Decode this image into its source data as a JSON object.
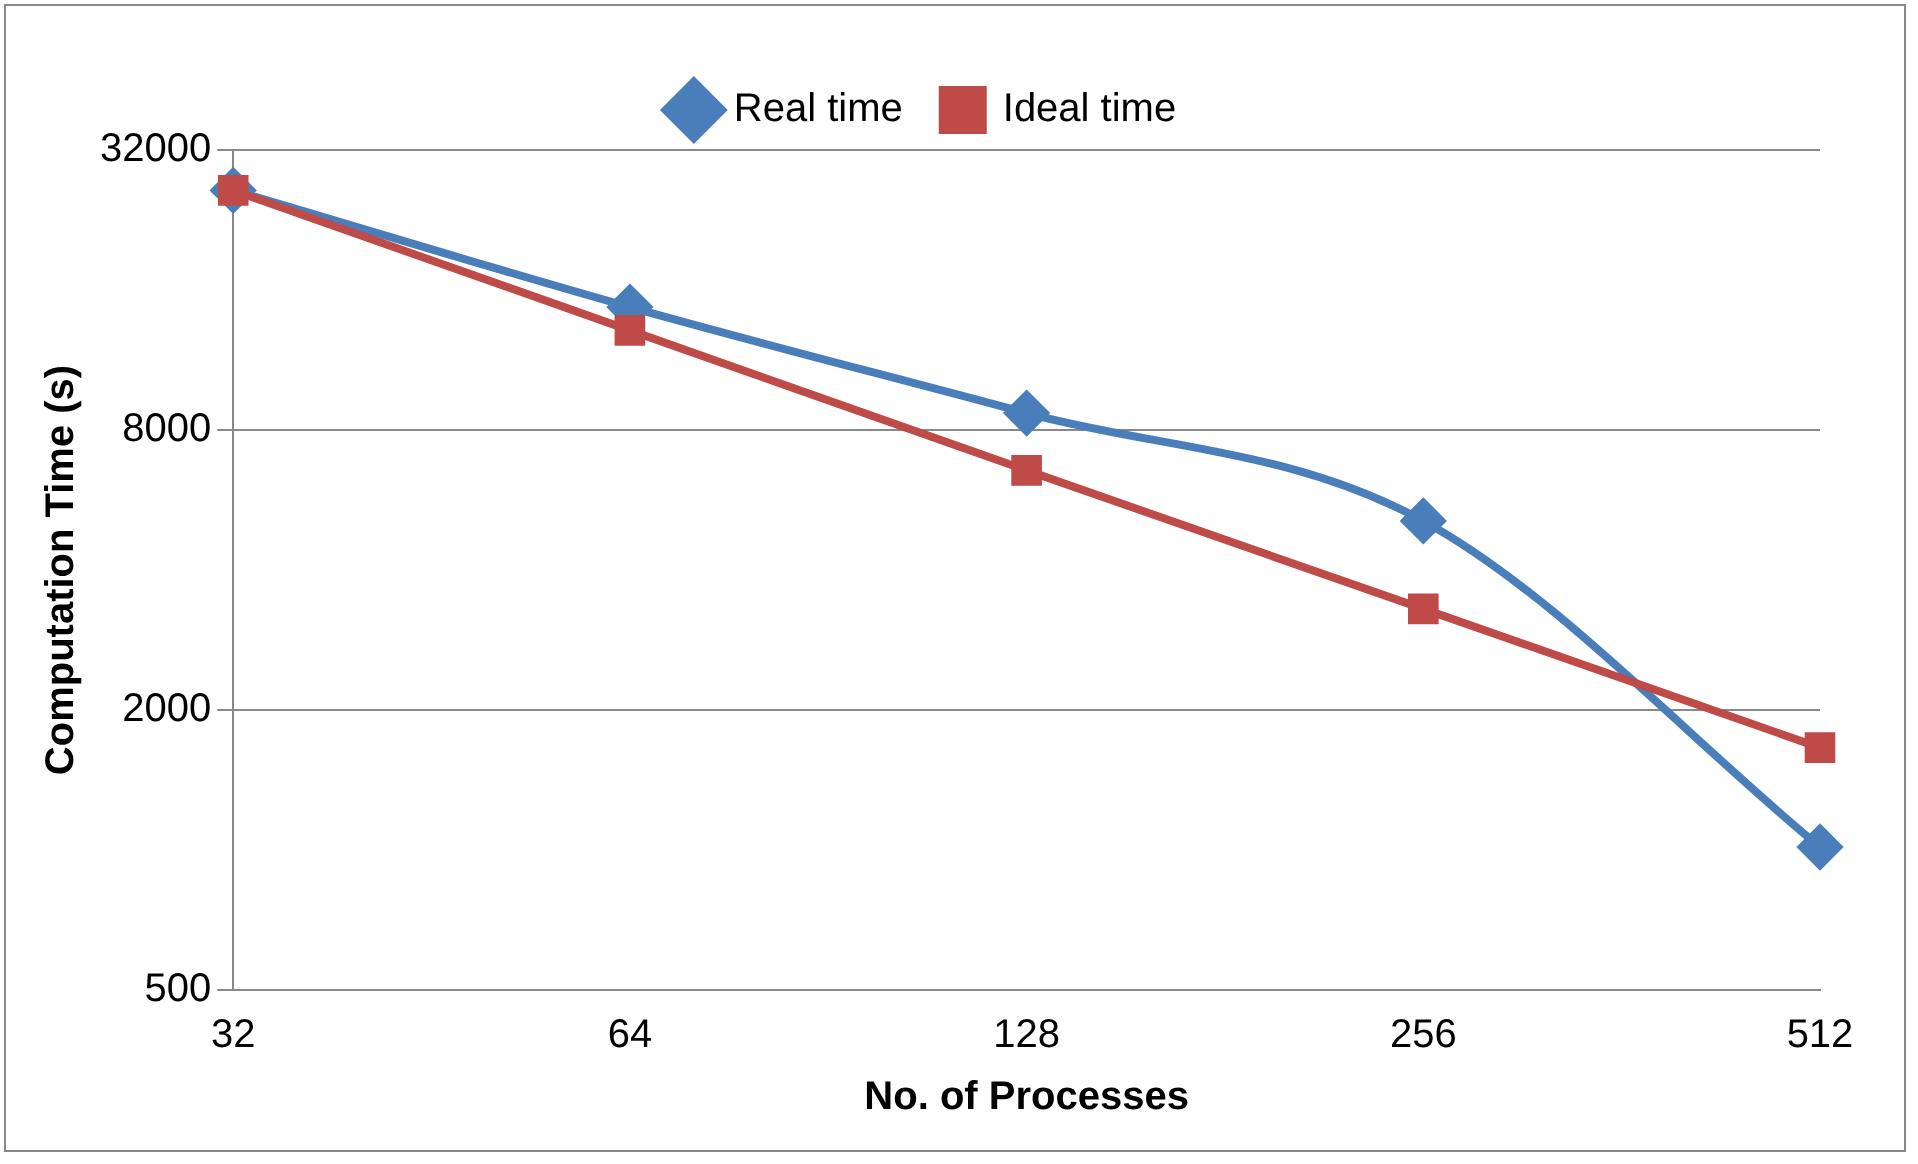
{
  "chart_data": {
    "type": "line",
    "xlabel": "No. of Processes",
    "ylabel": "Computation Time (s)",
    "categories": [
      "32",
      "64",
      "128",
      "256",
      "512"
    ],
    "series": [
      {
        "name": "Real time",
        "color": "#4a7ebb",
        "marker": "diamond",
        "values": [
          26200,
          14700,
          8700,
          5100,
          1015
        ]
      },
      {
        "name": "Ideal time",
        "color": "#be4b48",
        "marker": "square",
        "values": [
          26200,
          13100,
          6550,
          3300,
          1660
        ]
      }
    ],
    "log": "y",
    "ylim": [
      500,
      32000
    ],
    "yticks": [
      500,
      2000,
      8000,
      32000
    ],
    "grid": "y",
    "legend": "top"
  }
}
